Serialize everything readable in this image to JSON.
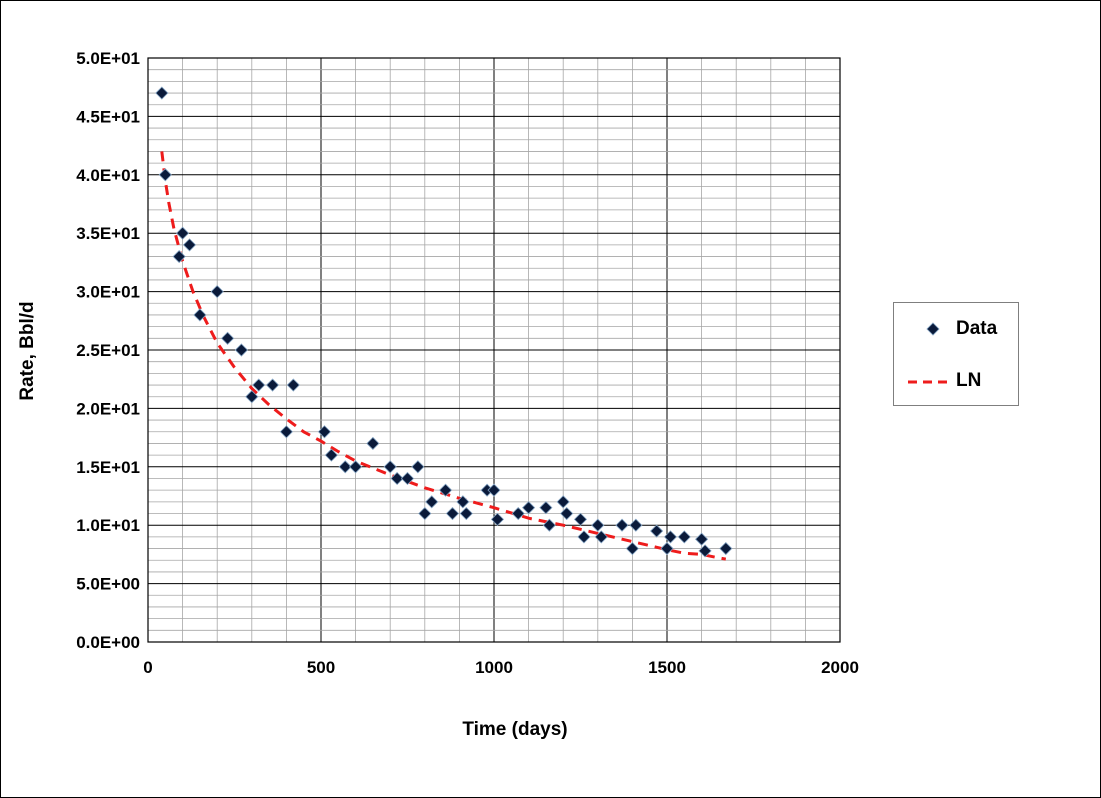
{
  "chart_data": {
    "type": "scatter",
    "xlabel": "Time (days)",
    "ylabel": "Rate, Bbl/d",
    "xlim": [
      0,
      2000
    ],
    "ylim": [
      0,
      50
    ],
    "x_major_ticks": [
      0,
      500,
      1000,
      1500,
      2000
    ],
    "x_tick_labels": [
      "0",
      "500",
      "1000",
      "1500",
      "2000"
    ],
    "y_major_ticks": [
      0,
      5,
      10,
      15,
      20,
      25,
      30,
      35,
      40,
      45,
      50
    ],
    "y_tick_labels": [
      "0.0E+00",
      "5.0E+00",
      "1.0E+01",
      "1.5E+01",
      "2.0E+01",
      "2.5E+01",
      "3.0E+01",
      "3.5E+01",
      "4.0E+01",
      "4.5E+01",
      "5.0E+01"
    ],
    "x_minor_step": 100,
    "y_minor_step": 1,
    "grid": true,
    "legend_position": "right",
    "series": [
      {
        "name": "Data",
        "kind": "markers",
        "marker": "diamond",
        "color": "#0a1a3a",
        "points": [
          [
            40,
            47
          ],
          [
            50,
            40
          ],
          [
            90,
            33
          ],
          [
            100,
            35
          ],
          [
            120,
            34
          ],
          [
            150,
            28
          ],
          [
            200,
            30
          ],
          [
            230,
            26
          ],
          [
            270,
            25
          ],
          [
            300,
            21
          ],
          [
            320,
            22
          ],
          [
            360,
            22
          ],
          [
            400,
            18
          ],
          [
            420,
            22
          ],
          [
            510,
            18
          ],
          [
            530,
            16
          ],
          [
            570,
            15
          ],
          [
            600,
            15
          ],
          [
            650,
            17
          ],
          [
            700,
            15
          ],
          [
            720,
            14
          ],
          [
            750,
            14
          ],
          [
            780,
            15
          ],
          [
            800,
            11
          ],
          [
            820,
            12
          ],
          [
            860,
            13
          ],
          [
            880,
            11
          ],
          [
            910,
            12
          ],
          [
            920,
            11
          ],
          [
            980,
            13
          ],
          [
            1000,
            13
          ],
          [
            1010,
            10.5
          ],
          [
            1070,
            11
          ],
          [
            1100,
            11.5
          ],
          [
            1150,
            11.5
          ],
          [
            1160,
            10
          ],
          [
            1200,
            12
          ],
          [
            1210,
            11
          ],
          [
            1250,
            10.5
          ],
          [
            1260,
            9
          ],
          [
            1300,
            10
          ],
          [
            1310,
            9
          ],
          [
            1370,
            10
          ],
          [
            1400,
            8
          ],
          [
            1410,
            10
          ],
          [
            1470,
            9.5
          ],
          [
            1500,
            8
          ],
          [
            1510,
            9
          ],
          [
            1550,
            9
          ],
          [
            1600,
            8.8
          ],
          [
            1610,
            7.8
          ],
          [
            1670,
            8
          ]
        ]
      },
      {
        "name": "LN",
        "kind": "line",
        "dash": "dashed",
        "color": "#ee1c1c",
        "points": [
          [
            40,
            42
          ],
          [
            50,
            39.5
          ],
          [
            60,
            37.6
          ],
          [
            75,
            35.4
          ],
          [
            100,
            32.6
          ],
          [
            130,
            30.0
          ],
          [
            160,
            27.9
          ],
          [
            200,
            25.6
          ],
          [
            250,
            23.5
          ],
          [
            300,
            21.7
          ],
          [
            350,
            20.3
          ],
          [
            400,
            19.1
          ],
          [
            450,
            18.0
          ],
          [
            500,
            17.2
          ],
          [
            550,
            16.3
          ],
          [
            600,
            15.5
          ],
          [
            700,
            14.3
          ],
          [
            800,
            13.2
          ],
          [
            900,
            12.3
          ],
          [
            1000,
            11.5
          ],
          [
            1100,
            10.6
          ],
          [
            1200,
            10.0
          ],
          [
            1300,
            9.3
          ],
          [
            1400,
            8.6
          ],
          [
            1500,
            7.9
          ],
          [
            1550,
            7.6
          ],
          [
            1600,
            7.5
          ],
          [
            1650,
            7.2
          ],
          [
            1670,
            7.1
          ]
        ]
      }
    ]
  }
}
